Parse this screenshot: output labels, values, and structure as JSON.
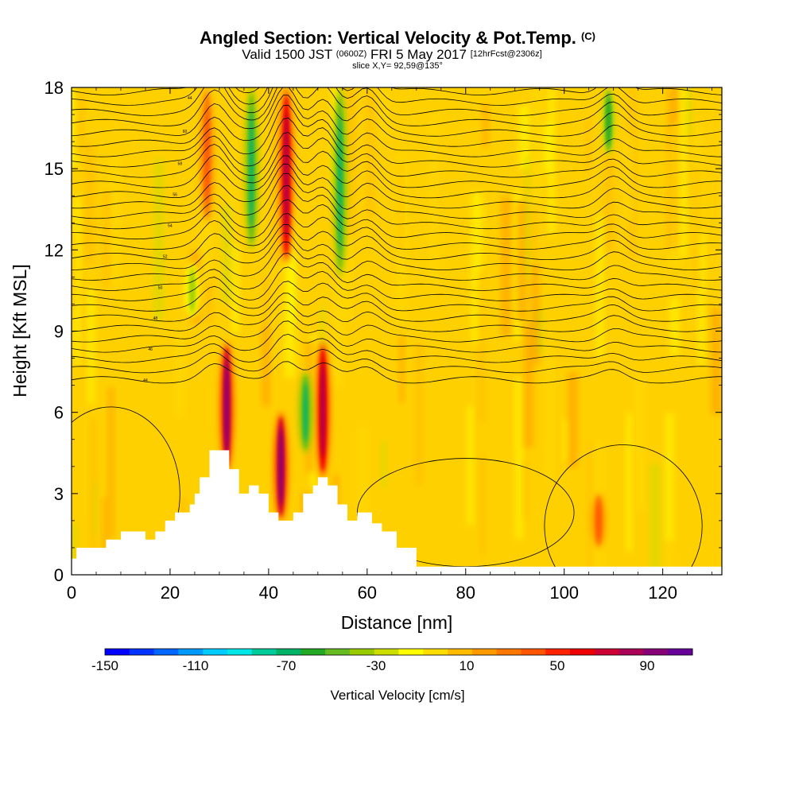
{
  "chart_data": {
    "type": "heatmap",
    "title": "Angled Section: Vertical Velocity & Pot.Temp.",
    "title_units": "(C)",
    "subtitle": {
      "valid": "Valid 1500 JST",
      "zulu": "(0600Z)",
      "date": "FRI 5 May 2017",
      "forecast": "[12hrFcst@2306z]"
    },
    "slice_label": "slice X,Y= 92,59@135°",
    "xlabel": "Distance [nm]",
    "ylabel": "Height [Kft MSL]",
    "xlim": [
      0,
      132
    ],
    "ylim": [
      0,
      18
    ],
    "x_ticks": [
      0,
      20,
      40,
      60,
      80,
      100,
      120
    ],
    "y_ticks": [
      0,
      3,
      6,
      9,
      12,
      15,
      18
    ],
    "colorbar": {
      "title": "Vertical Velocity [cm/s]",
      "tick_labels": [
        "-150",
        "-110",
        "-70",
        "-30",
        "10",
        "50",
        "90"
      ],
      "colors": [
        "#0000ff",
        "#0033ff",
        "#0066ff",
        "#0099ff",
        "#00ccff",
        "#00e5e5",
        "#00cc99",
        "#00b366",
        "#22a822",
        "#66bb22",
        "#99cc00",
        "#ccdd00",
        "#ffff00",
        "#ffdd00",
        "#ffbb00",
        "#ff9900",
        "#ff7700",
        "#ff5500",
        "#ff2200",
        "#ee0000",
        "#cc0033",
        "#aa0055",
        "#880077",
        "#660099"
      ]
    },
    "background_color": "#ffd000",
    "terrain": [
      [
        0,
        0.6
      ],
      [
        1,
        1.0
      ],
      [
        7,
        1.3
      ],
      [
        10,
        1.6
      ],
      [
        14,
        1.6
      ],
      [
        15,
        1.3
      ],
      [
        17,
        1.6
      ],
      [
        19,
        2.0
      ],
      [
        21,
        2.3
      ],
      [
        24,
        2.6
      ],
      [
        25,
        3.0
      ],
      [
        26,
        3.6
      ],
      [
        28,
        4.6
      ],
      [
        31,
        4.6
      ],
      [
        32,
        3.9
      ],
      [
        34,
        3.0
      ],
      [
        36,
        3.3
      ],
      [
        38,
        3.0
      ],
      [
        40,
        2.3
      ],
      [
        42,
        2.0
      ],
      [
        45,
        2.3
      ],
      [
        47,
        3.0
      ],
      [
        49,
        3.3
      ],
      [
        50,
        3.6
      ],
      [
        52,
        3.3
      ],
      [
        54,
        2.6
      ],
      [
        56,
        2.0
      ],
      [
        58,
        2.3
      ],
      [
        61,
        1.9
      ],
      [
        63,
        1.6
      ],
      [
        66,
        1.0
      ],
      [
        70,
        0.3
      ],
      [
        132,
        0.3
      ]
    ],
    "updrafts": [
      {
        "x": 31.5,
        "y0": 3.8,
        "y1": 8.6,
        "peak": 90
      },
      {
        "x": 42.5,
        "y0": 2.0,
        "y1": 6.0,
        "peak": 90
      },
      {
        "x": 43.6,
        "y0": 11.5,
        "y1": 18.0,
        "peak": 80
      },
      {
        "x": 51.0,
        "y0": 3.6,
        "y1": 8.6,
        "peak": 85
      },
      {
        "x": 27.5,
        "y0": 13.0,
        "y1": 18.0,
        "peak": 40
      },
      {
        "x": 107,
        "y0": 1.0,
        "y1": 3.0,
        "peak": 40
      }
    ],
    "downdrafts": [
      {
        "x": 36.5,
        "y0": 12.0,
        "y1": 18.0,
        "peak": -70
      },
      {
        "x": 54.5,
        "y0": 11.0,
        "y1": 18.0,
        "peak": -70
      },
      {
        "x": 47.5,
        "y0": 4.5,
        "y1": 7.5,
        "peak": -70
      },
      {
        "x": 109,
        "y0": 15.5,
        "y1": 18.0,
        "peak": -60
      },
      {
        "x": 24.5,
        "y0": 9.5,
        "y1": 11.5,
        "peak": -40
      }
    ],
    "theta_contour_labels": [
      "44",
      "46",
      "48",
      "50",
      "52",
      "54",
      "56",
      "58",
      "60"
    ]
  }
}
